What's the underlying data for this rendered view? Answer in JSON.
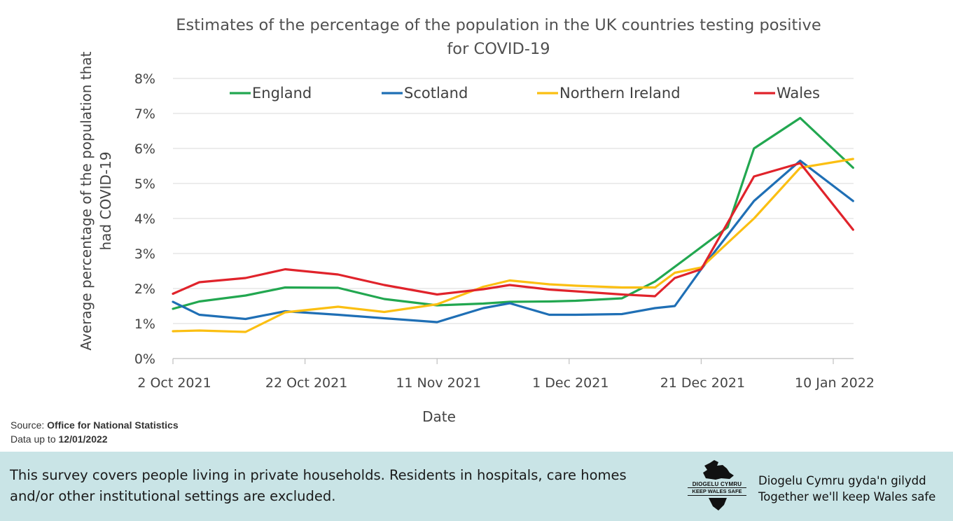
{
  "chart_data": {
    "type": "line",
    "title": "Estimates of the percentage of the population in the UK countries testing positive for COVID-19",
    "title_lines": [
      "Estimates of the percentage of the population in the UK countries testing positive",
      "for COVID-19"
    ],
    "xlabel": "Date",
    "ylabel": "Average percentage of the population that had COVID-19",
    "ylabel_lines": [
      "Average percentage of the population that",
      "had COVID-19"
    ],
    "x_tick_labels": [
      "2 Oct 2021",
      "22 Oct 2021",
      "11 Nov 2021",
      "1 Dec 2021",
      "21 Dec 2021",
      "10 Jan 2022"
    ],
    "y_tick_labels": [
      "0%",
      "1%",
      "2%",
      "3%",
      "4%",
      "5%",
      "6%",
      "7%",
      "8%"
    ],
    "ylim": [
      0,
      8
    ],
    "xlim_days": [
      0,
      103
    ],
    "x_tick_days": [
      0,
      20,
      40,
      60,
      80,
      100
    ],
    "legend_position": "top",
    "grid": "horizontal",
    "series": [
      {
        "name": "England",
        "color": "#22a750",
        "days": [
          0,
          4,
          11,
          17,
          25,
          32,
          40,
          47,
          51,
          57,
          61,
          68,
          73,
          78,
          84,
          88,
          95,
          103
        ],
        "values": [
          1.42,
          1.63,
          1.8,
          2.03,
          2.02,
          1.7,
          1.52,
          1.57,
          1.62,
          1.63,
          1.65,
          1.72,
          2.2,
          2.9,
          3.75,
          6.0,
          6.87,
          5.45
        ]
      },
      {
        "name": "Scotland",
        "color": "#1f6fb5",
        "days": [
          0,
          4,
          11,
          17,
          25,
          32,
          40,
          47,
          51,
          57,
          61,
          68,
          73,
          76,
          80,
          88,
          95,
          103
        ],
        "values": [
          1.62,
          1.25,
          1.13,
          1.35,
          1.25,
          1.15,
          1.04,
          1.44,
          1.58,
          1.25,
          1.25,
          1.27,
          1.44,
          1.5,
          2.55,
          4.5,
          5.65,
          4.5
        ]
      },
      {
        "name": "Northern Ireland",
        "color": "#fbbf12",
        "days": [
          0,
          4,
          11,
          17,
          25,
          32,
          40,
          47,
          51,
          57,
          61,
          68,
          73,
          76,
          80,
          88,
          95,
          103
        ],
        "values": [
          0.78,
          0.8,
          0.76,
          1.32,
          1.48,
          1.33,
          1.55,
          2.05,
          2.23,
          2.12,
          2.08,
          2.03,
          2.03,
          2.45,
          2.6,
          4.0,
          5.45,
          5.7
        ]
      },
      {
        "name": "Wales",
        "color": "#e0232b",
        "days": [
          0,
          4,
          11,
          17,
          25,
          32,
          40,
          47,
          51,
          57,
          61,
          68,
          73,
          76,
          80,
          88,
          95,
          103
        ],
        "values": [
          1.85,
          2.18,
          2.3,
          2.55,
          2.4,
          2.1,
          1.83,
          1.98,
          2.1,
          1.97,
          1.92,
          1.83,
          1.78,
          2.3,
          2.55,
          5.2,
          5.58,
          3.68
        ]
      }
    ]
  },
  "source": {
    "label": "Source: ",
    "name": "Office for National Statistics",
    "data_label": "Data up to ",
    "data_date": "12/01/2022"
  },
  "footer": {
    "note": "This survey covers people living in private households. Residents in hospitals, care homes and/or other institutional settings are excluded.",
    "logo_line1": "DIOGELU CYMRU",
    "logo_line2": "KEEP WALES SAFE",
    "slogan_welsh": "Diogelu Cymru gyda'n gilydd",
    "slogan_english": "Together we'll keep Wales safe"
  }
}
